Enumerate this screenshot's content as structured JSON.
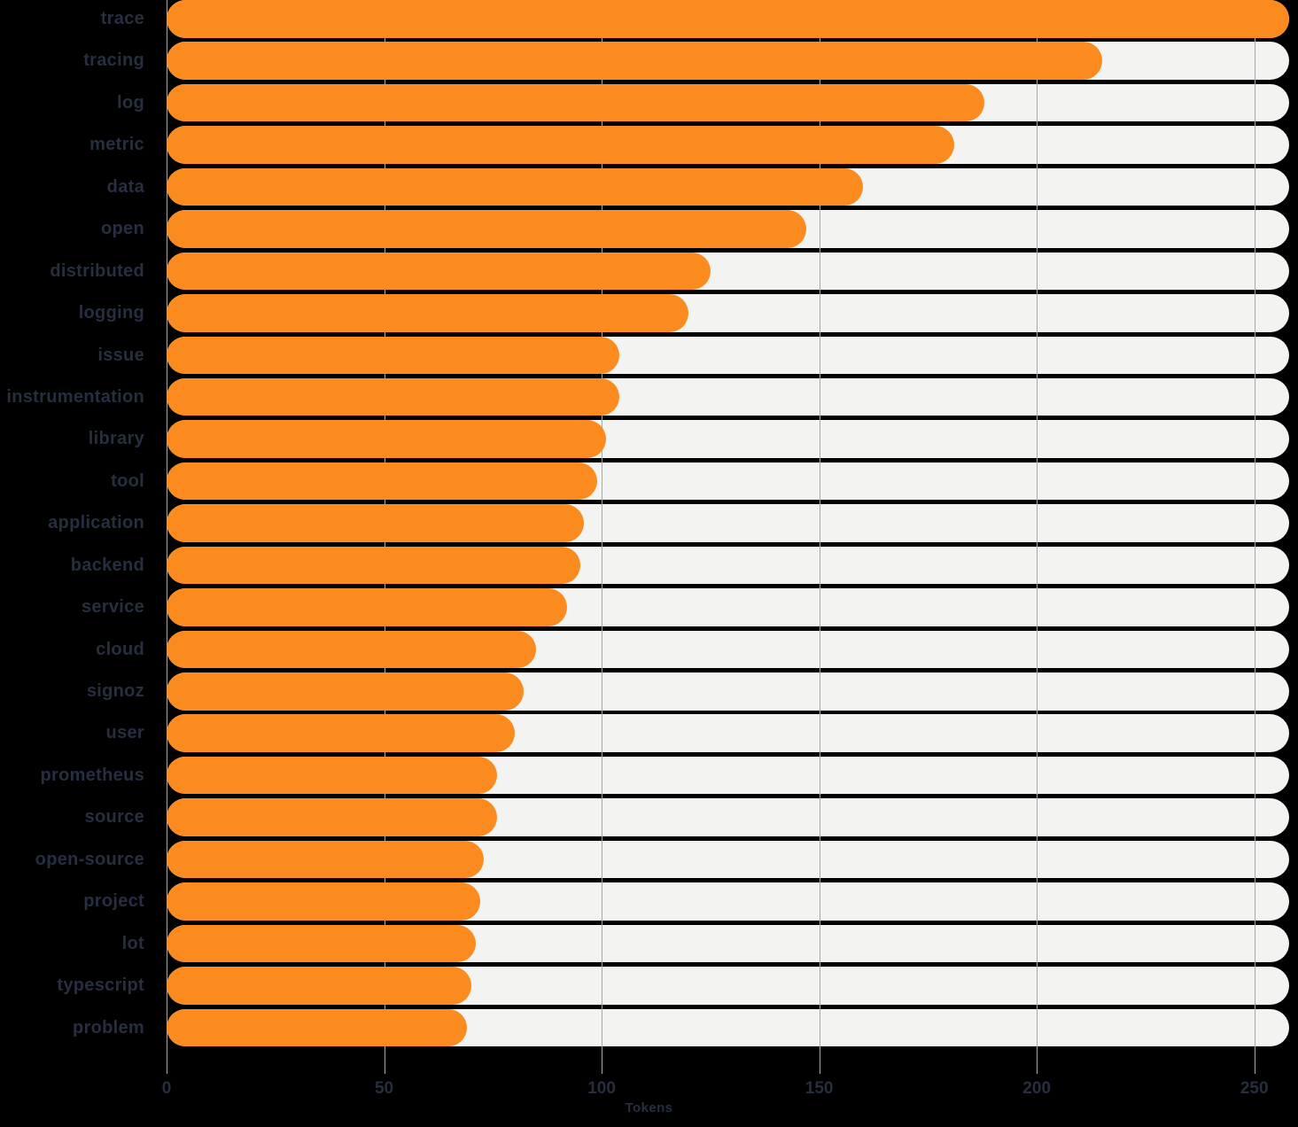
{
  "chart_data": {
    "type": "bar",
    "orientation": "horizontal",
    "title": "",
    "xlabel": "Tokens",
    "ylabel": "",
    "xlim": [
      0,
      258
    ],
    "x_ticks": [
      0,
      50,
      100,
      150,
      200,
      250
    ],
    "grid": true,
    "legend": false,
    "categories": [
      "trace",
      "tracing",
      "log",
      "metric",
      "data",
      "open",
      "distributed",
      "logging",
      "issue",
      "instrumentation",
      "library",
      "tool",
      "application",
      "backend",
      "service",
      "cloud",
      "signoz",
      "user",
      "prometheus",
      "source",
      "open-source",
      "project",
      "lot",
      "typescript",
      "problem"
    ],
    "values": [
      258,
      215,
      188,
      181,
      160,
      147,
      125,
      120,
      104,
      104,
      101,
      99,
      96,
      95,
      92,
      85,
      82,
      80,
      76,
      76,
      73,
      72,
      71,
      70,
      69
    ]
  },
  "colors": {
    "bar": "#fb8b1e",
    "track": "#f3f3f1",
    "grid": "#a9a9a9",
    "text": "#272e40",
    "background": "#000000"
  }
}
